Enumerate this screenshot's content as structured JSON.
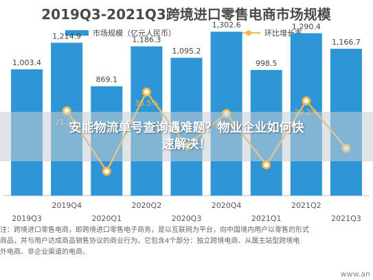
{
  "chart_data": {
    "type": "bar+line",
    "title": "2019Q3-2021Q3跨境进口零售电商市场规模",
    "legend": {
      "position": "top",
      "bar": "市场规模（亿元人民币）",
      "line": "环比增长率"
    },
    "categories": [
      "2019Q3",
      "2019Q4",
      "2020Q1",
      "2020Q2",
      "2020Q3",
      "2020Q4",
      "2021Q1",
      "2021Q2",
      "2021Q3"
    ],
    "bar_series": {
      "name": "市场规模（亿元人民币）",
      "values": [
        1003.4,
        1214.9,
        869.1,
        1186.3,
        1095.2,
        1302.6,
        998.5,
        1290.4,
        1166.7
      ],
      "labels": [
        "1,003.4",
        "1,214.9",
        "869.1",
        "1,186.3",
        "1,095.2",
        "1,302.6",
        "998.5",
        "1,290.4",
        "1,166.7"
      ]
    },
    "line_series": {
      "name": "环比增长率",
      "values": [
        null,
        21.1,
        -28.5,
        36.5,
        -7.7,
        18.9,
        -23.3,
        29.2,
        -9.6
      ],
      "labels": [
        "",
        "21.1%",
        "",
        "36.5%",
        "",
        "18.9%",
        "",
        "29.2%",
        ""
      ],
      "range": [
        -40,
        50
      ]
    },
    "ylim": [
      0,
      1500
    ],
    "grid": false,
    "colors": {
      "bar": "#2e96d6",
      "line": "#f2b84b",
      "title": "#4a4a4a",
      "axis": "#bbbbbb"
    }
  },
  "overlay": {
    "line1": "安能物流单号查询遇难题？物业企业如何快",
    "line2": "速解决！"
  },
  "footnote": {
    "line1": "注：跨境进口零售电商，即跨境进口零售电子商务，是以互联网为平台，向中国境内用户以零售的形式",
    "line2": "商品，并与用户达成商品销售协议的商业行为。它包含4个部分：独立跨境电商、从属主站型跨境电",
    "line3": "外电商、非企业渠道的电商。"
  },
  "watermark": "www.an"
}
